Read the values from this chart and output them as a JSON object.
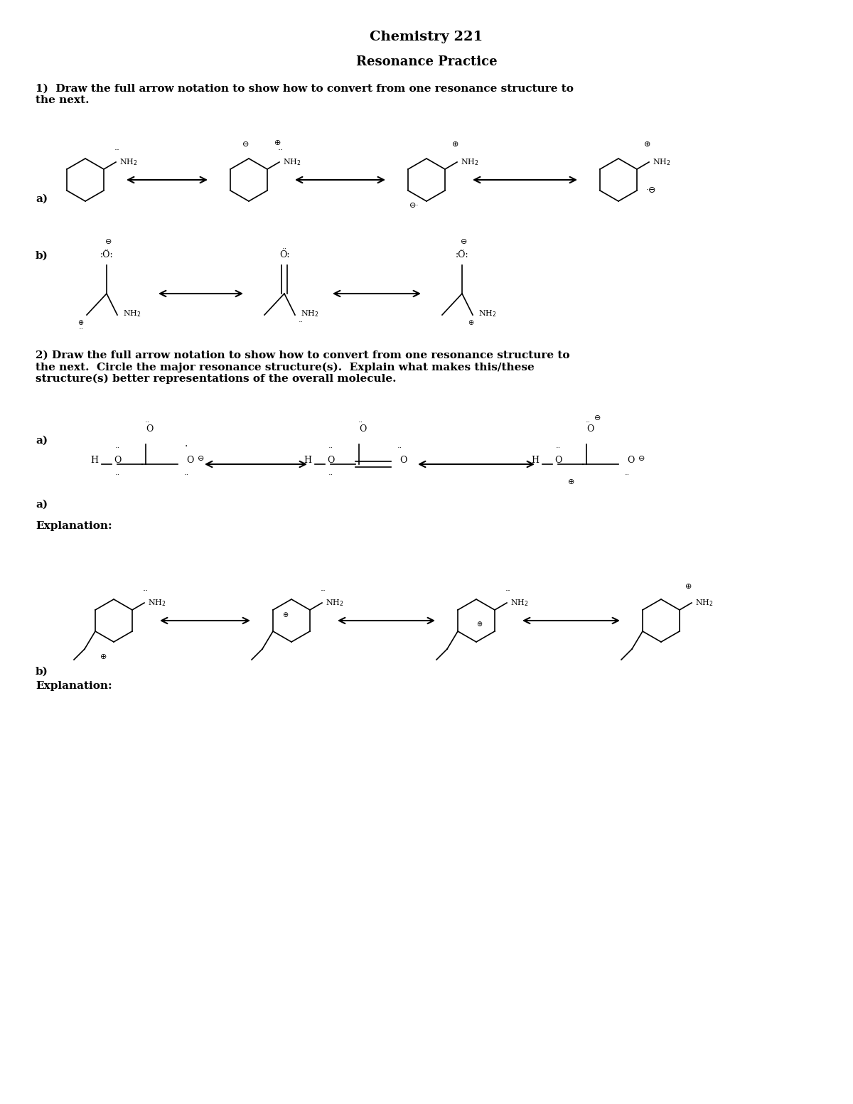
{
  "title1": "Chemistry 221",
  "title2": "Resonance Practice",
  "q1_text": "1)  Draw the full arrow notation to show how to convert from one resonance structure to\nthe next.",
  "q2_text": "2) Draw the full arrow notation to show how to convert from one resonance structure to\nthe next.  Circle the major resonance structure(s).  Explain what makes this/these\nstructure(s) better representations of the overall molecule.",
  "q1a_label": "a)",
  "q1b_label": "b)",
  "q2a_label": "a)",
  "q2b_label": "b)",
  "explanation_label": "Explanation:",
  "bg_color": "#ffffff",
  "text_color": "#000000",
  "font_size_title": 14,
  "font_size_body": 12,
  "font_size_label": 11
}
